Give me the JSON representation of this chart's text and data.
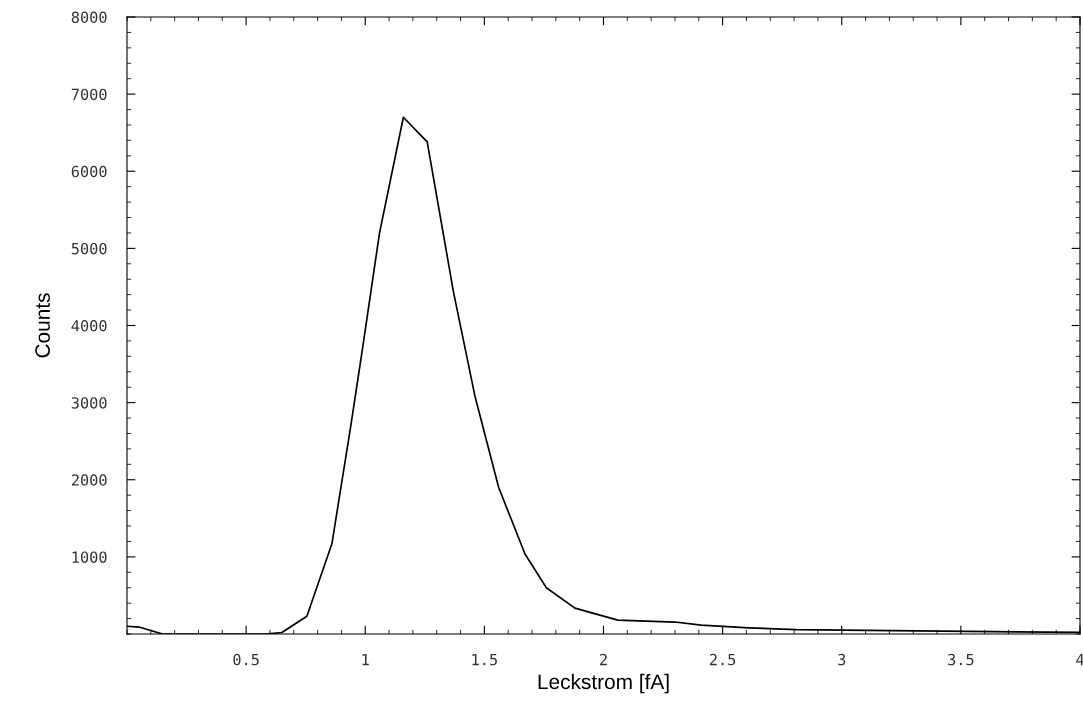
{
  "chart_data": {
    "type": "line",
    "xlabel": "Leckstrom [fA]",
    "ylabel": "Counts",
    "xlim": [
      0,
      4
    ],
    "ylim": [
      0,
      8000
    ],
    "xticks": [
      0.5,
      1,
      1.5,
      2,
      2.5,
      3,
      3.5,
      4
    ],
    "yticks": [
      1000,
      2000,
      3000,
      4000,
      5000,
      6000,
      7000,
      8000
    ],
    "grid": false,
    "legend": false,
    "marker": "none",
    "line_style": "solid",
    "series": [
      {
        "color": "#000000",
        "x": [
          0,
          0.05,
          0.15,
          0.58,
          0.65,
          0.755,
          0.86,
          0.94,
          0.985,
          1.06,
          1.16,
          1.26,
          1.37,
          1.46,
          1.56,
          1.67,
          1.76,
          1.88,
          2.06,
          2.3,
          2.41,
          2.61,
          2.81,
          3.31,
          4.0
        ],
        "values": [
          100,
          90,
          0,
          0,
          20,
          230,
          1170,
          2710,
          3630,
          5200,
          6700,
          6380,
          4440,
          3090,
          1900,
          1040,
          600,
          335,
          180,
          155,
          115,
          80,
          57,
          40,
          20
        ]
      }
    ]
  }
}
